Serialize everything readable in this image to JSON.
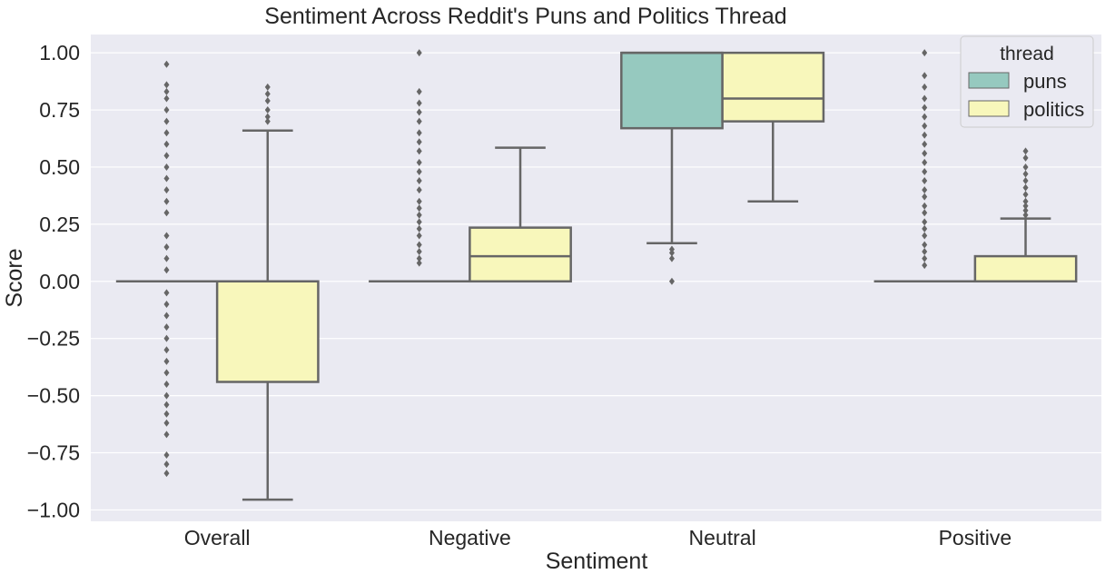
{
  "chart_data": {
    "type": "box",
    "title": "Sentiment Across Reddit's Puns and Politics Thread",
    "xlabel": "Sentiment",
    "ylabel": "Score",
    "ylim": [
      -1.05,
      1.08
    ],
    "yticks": [
      -1.0,
      -0.75,
      -0.5,
      -0.25,
      0.0,
      0.25,
      0.5,
      0.75,
      1.0
    ],
    "ytick_labels": [
      "−1.00",
      "−0.75",
      "−0.50",
      "−0.25",
      "0.00",
      "0.25",
      "0.50",
      "0.75",
      "1.00"
    ],
    "categories": [
      "Overall",
      "Negative",
      "Neutral",
      "Positive"
    ],
    "grid": true,
    "legend": {
      "title": "thread",
      "placement": "top-right"
    },
    "series": [
      {
        "name": "puns",
        "color": "#96c9bf",
        "boxes": [
          {
            "q1": 0.0,
            "median": 0.0,
            "q3": 0.0,
            "whisker_low": 0.0,
            "whisker_high": 0.0,
            "outliers": [
              -0.84,
              -0.8,
              -0.76,
              -0.67,
              -0.62,
              -0.58,
              -0.54,
              -0.5,
              -0.45,
              -0.4,
              -0.35,
              -0.3,
              -0.25,
              -0.2,
              -0.15,
              -0.1,
              -0.05,
              0.05,
              0.1,
              0.15,
              0.2,
              0.3,
              0.35,
              0.4,
              0.45,
              0.5,
              0.55,
              0.6,
              0.65,
              0.7,
              0.75,
              0.8,
              0.83,
              0.86,
              0.95
            ]
          },
          {
            "q1": 0.0,
            "median": 0.0,
            "q3": 0.0,
            "whisker_low": 0.0,
            "whisker_high": 0.0,
            "outliers": [
              0.08,
              0.1,
              0.13,
              0.16,
              0.2,
              0.23,
              0.26,
              0.29,
              0.32,
              0.35,
              0.4,
              0.44,
              0.48,
              0.52,
              0.57,
              0.61,
              0.65,
              0.7,
              0.74,
              0.78,
              0.83,
              1.0
            ]
          },
          {
            "q1": 0.67,
            "median": 1.0,
            "q3": 1.0,
            "whisker_low": 0.167,
            "whisker_high": 1.0,
            "outliers": [
              0.0,
              0.1,
              0.125,
              0.14
            ]
          },
          {
            "q1": 0.0,
            "median": 0.0,
            "q3": 0.0,
            "whisker_low": 0.0,
            "whisker_high": 0.0,
            "outliers": [
              0.07,
              0.1,
              0.13,
              0.16,
              0.2,
              0.23,
              0.26,
              0.3,
              0.33,
              0.37,
              0.4,
              0.44,
              0.48,
              0.52,
              0.56,
              0.6,
              0.64,
              0.68,
              0.72,
              0.76,
              0.8,
              0.85,
              0.9,
              1.0
            ]
          }
        ]
      },
      {
        "name": "politics",
        "color": "#f8f7bb",
        "boxes": [
          {
            "q1": -0.44,
            "median": 0.0,
            "q3": 0.0,
            "whisker_low": -0.955,
            "whisker_high": 0.66,
            "outliers": [
              0.7,
              0.72,
              0.75,
              0.79,
              0.82,
              0.85
            ]
          },
          {
            "q1": 0.0,
            "median": 0.11,
            "q3": 0.235,
            "whisker_low": 0.0,
            "whisker_high": 0.585,
            "outliers": []
          },
          {
            "q1": 0.7,
            "median": 0.8,
            "q3": 1.0,
            "whisker_low": 0.35,
            "whisker_high": 1.0,
            "outliers": []
          },
          {
            "q1": 0.0,
            "median": 0.0,
            "q3": 0.11,
            "whisker_low": 0.0,
            "whisker_high": 0.275,
            "outliers": [
              0.29,
              0.31,
              0.33,
              0.35,
              0.38,
              0.41,
              0.44,
              0.47,
              0.5,
              0.54,
              0.57
            ]
          }
        ]
      }
    ]
  },
  "colors": {
    "plot_background": "#eaeaf2",
    "grid": "#ffffff",
    "box_edge": "#666666"
  }
}
